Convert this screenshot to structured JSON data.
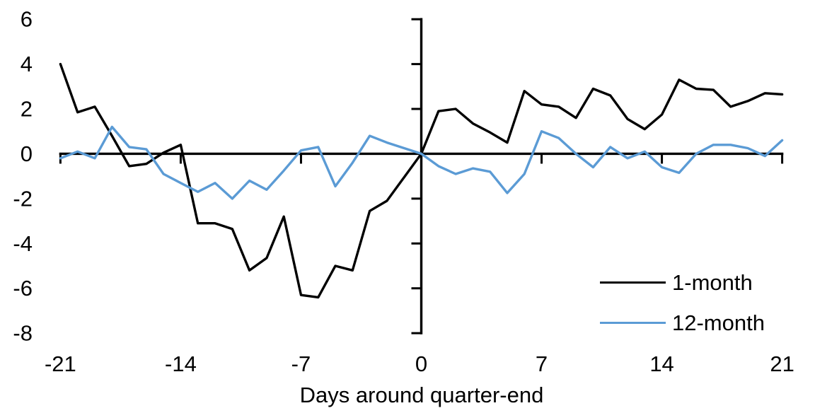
{
  "chart_data": {
    "type": "line",
    "title": "",
    "xlabel": "Days around quarter-end",
    "ylabel": "",
    "xlim": [
      -21,
      21
    ],
    "ylim": [
      -8,
      6
    ],
    "x_ticks": [
      -21,
      -14,
      -7,
      0,
      7,
      14,
      21
    ],
    "y_ticks": [
      6,
      4,
      2,
      0,
      -2,
      -4,
      -6,
      -8
    ],
    "grid": false,
    "legend_position": "inside-bottom-right",
    "axis_color": "#000000",
    "x": [
      -21,
      -20,
      -19,
      -18,
      -17,
      -16,
      -15,
      -14,
      -13,
      -12,
      -11,
      -10,
      -9,
      -8,
      -7,
      -6,
      -5,
      -4,
      -3,
      -2,
      -1,
      0,
      1,
      2,
      3,
      4,
      5,
      6,
      7,
      8,
      9,
      10,
      11,
      12,
      13,
      14,
      15,
      16,
      17,
      18,
      19,
      20,
      21
    ],
    "series": [
      {
        "name": "1-month",
        "color": "#000000",
        "values": [
          4.0,
          1.85,
          2.1,
          0.8,
          -0.55,
          -0.45,
          0.05,
          0.4,
          -3.1,
          -3.1,
          -3.35,
          -5.2,
          -4.65,
          -2.8,
          -6.3,
          -6.4,
          -5.0,
          -5.2,
          -2.55,
          -2.1,
          -1.05,
          0.0,
          1.9,
          2.0,
          1.35,
          0.95,
          0.5,
          2.8,
          2.2,
          2.1,
          1.6,
          2.9,
          2.6,
          1.55,
          1.1,
          1.75,
          3.3,
          2.9,
          2.85,
          2.1,
          2.35,
          2.7,
          2.65
        ]
      },
      {
        "name": "12-month",
        "color": "#5B9BD5",
        "values": [
          -0.2,
          0.1,
          -0.2,
          1.2,
          0.3,
          0.2,
          -0.9,
          -1.3,
          -1.7,
          -1.3,
          -2.0,
          -1.2,
          -1.6,
          -0.75,
          0.15,
          0.3,
          -1.45,
          -0.4,
          0.8,
          0.5,
          0.25,
          0.0,
          -0.55,
          -0.9,
          -0.65,
          -0.8,
          -1.75,
          -0.9,
          1.0,
          0.7,
          0.0,
          -0.6,
          0.3,
          -0.2,
          0.1,
          -0.6,
          -0.85,
          0.0,
          0.4,
          0.4,
          0.25,
          -0.1,
          0.6
        ]
      }
    ]
  }
}
